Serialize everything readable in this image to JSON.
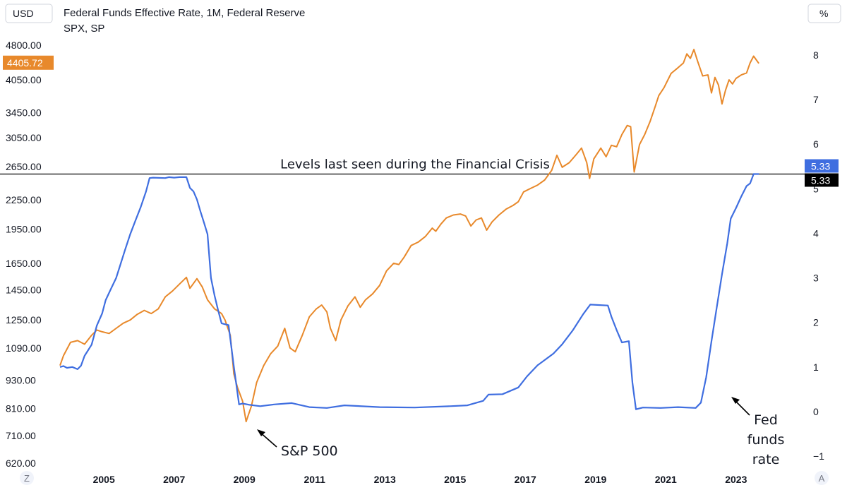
{
  "header": {
    "currency_label": "USD",
    "pct_label": "%",
    "series_title_1": "Federal Funds Effective Rate, 1M, Federal Reserve",
    "series_title_2": "SPX, SP",
    "zoom_label": "Z",
    "auto_label": "A"
  },
  "colors": {
    "spx": "#e8892b",
    "fed": "#3f6ee0",
    "ref_line": "#000000"
  },
  "chart_data": {
    "type": "line",
    "title": "Federal Funds Effective Rate, 1M, Federal Reserve vs SPX, SP",
    "x_ticks": [
      "2005",
      "2007",
      "2009",
      "2011",
      "2013",
      "2015",
      "2017",
      "2019",
      "2021",
      "2023"
    ],
    "xlim": [
      2003.8,
      2024.4
    ],
    "y_left": {
      "label": "USD",
      "scale": "log",
      "ticks": [
        "4800.00",
        "4050.00",
        "3450.00",
        "3050.00",
        "2650.00",
        "2250.00",
        "1950.00",
        "1650.00",
        "1450.00",
        "1250.00",
        "1090.00",
        "930.00",
        "810.00",
        "710.00",
        "620.00"
      ],
      "range": [
        620,
        4800
      ]
    },
    "y_right": {
      "label": "%",
      "ticks": [
        "8",
        "7",
        "6",
        "5",
        "4",
        "3",
        "2",
        "1",
        "0",
        "−1"
      ],
      "range": [
        -1,
        8
      ]
    },
    "series": [
      {
        "name": "SPX, SP",
        "axis": "left",
        "last_value_label": "4405.72",
        "points": [
          [
            2003.9,
            1000
          ],
          [
            2004.0,
            1050
          ],
          [
            2004.2,
            1120
          ],
          [
            2004.4,
            1130
          ],
          [
            2004.6,
            1110
          ],
          [
            2004.8,
            1160
          ],
          [
            2004.95,
            1190
          ],
          [
            2005.1,
            1180
          ],
          [
            2005.3,
            1170
          ],
          [
            2005.5,
            1200
          ],
          [
            2005.7,
            1230
          ],
          [
            2005.9,
            1250
          ],
          [
            2006.1,
            1285
          ],
          [
            2006.3,
            1310
          ],
          [
            2006.5,
            1290
          ],
          [
            2006.7,
            1320
          ],
          [
            2006.9,
            1400
          ],
          [
            2007.1,
            1440
          ],
          [
            2007.3,
            1490
          ],
          [
            2007.5,
            1540
          ],
          [
            2007.6,
            1460
          ],
          [
            2007.8,
            1530
          ],
          [
            2007.95,
            1470
          ],
          [
            2008.1,
            1380
          ],
          [
            2008.3,
            1320
          ],
          [
            2008.5,
            1290
          ],
          [
            2008.6,
            1250
          ],
          [
            2008.75,
            1160
          ],
          [
            2008.85,
            960
          ],
          [
            2008.95,
            900
          ],
          [
            2009.1,
            840
          ],
          [
            2009.2,
            760
          ],
          [
            2009.35,
            820
          ],
          [
            2009.5,
            920
          ],
          [
            2009.7,
            1000
          ],
          [
            2009.9,
            1060
          ],
          [
            2010.1,
            1100
          ],
          [
            2010.3,
            1200
          ],
          [
            2010.45,
            1090
          ],
          [
            2010.6,
            1070
          ],
          [
            2010.8,
            1160
          ],
          [
            2011.0,
            1270
          ],
          [
            2011.2,
            1320
          ],
          [
            2011.35,
            1345
          ],
          [
            2011.5,
            1300
          ],
          [
            2011.6,
            1200
          ],
          [
            2011.75,
            1130
          ],
          [
            2011.9,
            1250
          ],
          [
            2012.1,
            1340
          ],
          [
            2012.3,
            1400
          ],
          [
            2012.45,
            1330
          ],
          [
            2012.6,
            1380
          ],
          [
            2012.8,
            1420
          ],
          [
            2013.0,
            1480
          ],
          [
            2013.2,
            1590
          ],
          [
            2013.4,
            1650
          ],
          [
            2013.55,
            1640
          ],
          [
            2013.7,
            1700
          ],
          [
            2013.9,
            1800
          ],
          [
            2014.1,
            1830
          ],
          [
            2014.3,
            1880
          ],
          [
            2014.5,
            1960
          ],
          [
            2014.6,
            1930
          ],
          [
            2014.75,
            2000
          ],
          [
            2014.9,
            2060
          ],
          [
            2015.1,
            2090
          ],
          [
            2015.3,
            2100
          ],
          [
            2015.45,
            2080
          ],
          [
            2015.6,
            1980
          ],
          [
            2015.75,
            2040
          ],
          [
            2015.9,
            2060
          ],
          [
            2016.05,
            1940
          ],
          [
            2016.2,
            2020
          ],
          [
            2016.4,
            2090
          ],
          [
            2016.6,
            2150
          ],
          [
            2016.8,
            2190
          ],
          [
            2016.95,
            2230
          ],
          [
            2017.1,
            2340
          ],
          [
            2017.3,
            2380
          ],
          [
            2017.5,
            2420
          ],
          [
            2017.7,
            2480
          ],
          [
            2017.9,
            2600
          ],
          [
            2018.05,
            2800
          ],
          [
            2018.2,
            2640
          ],
          [
            2018.4,
            2700
          ],
          [
            2018.6,
            2810
          ],
          [
            2018.75,
            2900
          ],
          [
            2018.9,
            2700
          ],
          [
            2018.98,
            2500
          ],
          [
            2019.1,
            2750
          ],
          [
            2019.3,
            2900
          ],
          [
            2019.45,
            2780
          ],
          [
            2019.6,
            2940
          ],
          [
            2019.75,
            2920
          ],
          [
            2019.9,
            3100
          ],
          [
            2020.05,
            3240
          ],
          [
            2020.15,
            3220
          ],
          [
            2020.25,
            2580
          ],
          [
            2020.4,
            2950
          ],
          [
            2020.55,
            3100
          ],
          [
            2020.7,
            3300
          ],
          [
            2020.85,
            3560
          ],
          [
            2020.95,
            3750
          ],
          [
            2021.1,
            3900
          ],
          [
            2021.3,
            4180
          ],
          [
            2021.5,
            4300
          ],
          [
            2021.65,
            4400
          ],
          [
            2021.75,
            4600
          ],
          [
            2021.85,
            4500
          ],
          [
            2021.95,
            4700
          ],
          [
            2022.05,
            4450
          ],
          [
            2022.2,
            4130
          ],
          [
            2022.35,
            4150
          ],
          [
            2022.45,
            3800
          ],
          [
            2022.55,
            4100
          ],
          [
            2022.65,
            3950
          ],
          [
            2022.75,
            3600
          ],
          [
            2022.85,
            3850
          ],
          [
            2022.95,
            4050
          ],
          [
            2023.05,
            3970
          ],
          [
            2023.15,
            4080
          ],
          [
            2023.3,
            4150
          ],
          [
            2023.45,
            4190
          ],
          [
            2023.55,
            4400
          ],
          [
            2023.65,
            4550
          ],
          [
            2023.8,
            4390
          ]
        ]
      },
      {
        "name": "Federal Funds Effective Rate",
        "axis": "right",
        "last_value_label": "5.33",
        "points": [
          [
            2003.9,
            1.0
          ],
          [
            2004.0,
            1.02
          ],
          [
            2004.1,
            0.98
          ],
          [
            2004.25,
            1.0
          ],
          [
            2004.4,
            0.95
          ],
          [
            2004.5,
            1.03
          ],
          [
            2004.6,
            1.25
          ],
          [
            2004.8,
            1.5
          ],
          [
            2004.95,
            1.93
          ],
          [
            2005.1,
            2.2
          ],
          [
            2005.2,
            2.5
          ],
          [
            2005.35,
            2.75
          ],
          [
            2005.5,
            3.0
          ],
          [
            2005.6,
            3.25
          ],
          [
            2005.75,
            3.62
          ],
          [
            2005.9,
            3.98
          ],
          [
            2006.05,
            4.29
          ],
          [
            2006.2,
            4.59
          ],
          [
            2006.35,
            4.94
          ],
          [
            2006.45,
            5.24
          ],
          [
            2006.55,
            5.25
          ],
          [
            2006.9,
            5.24
          ],
          [
            2007.0,
            5.26
          ],
          [
            2007.15,
            5.25
          ],
          [
            2007.3,
            5.26
          ],
          [
            2007.5,
            5.26
          ],
          [
            2007.6,
            5.02
          ],
          [
            2007.7,
            4.94
          ],
          [
            2007.8,
            4.76
          ],
          [
            2007.9,
            4.49
          ],
          [
            2008.0,
            4.24
          ],
          [
            2008.1,
            3.98
          ],
          [
            2008.2,
            3.0
          ],
          [
            2008.3,
            2.61
          ],
          [
            2008.4,
            2.28
          ],
          [
            2008.5,
            1.98
          ],
          [
            2008.7,
            1.94
          ],
          [
            2008.85,
            1.01
          ],
          [
            2009.0,
            0.16
          ],
          [
            2009.1,
            0.18
          ],
          [
            2009.3,
            0.15
          ],
          [
            2009.6,
            0.12
          ],
          [
            2010.0,
            0.16
          ],
          [
            2010.5,
            0.19
          ],
          [
            2011.0,
            0.1
          ],
          [
            2011.5,
            0.08
          ],
          [
            2012.0,
            0.14
          ],
          [
            2013.0,
            0.1
          ],
          [
            2014.0,
            0.09
          ],
          [
            2015.0,
            0.12
          ],
          [
            2015.5,
            0.14
          ],
          [
            2015.95,
            0.24
          ],
          [
            2016.1,
            0.38
          ],
          [
            2016.5,
            0.39
          ],
          [
            2016.95,
            0.54
          ],
          [
            2017.2,
            0.79
          ],
          [
            2017.5,
            1.04
          ],
          [
            2017.95,
            1.3
          ],
          [
            2018.2,
            1.51
          ],
          [
            2018.5,
            1.82
          ],
          [
            2018.8,
            2.19
          ],
          [
            2019.0,
            2.4
          ],
          [
            2019.5,
            2.38
          ],
          [
            2019.6,
            2.13
          ],
          [
            2019.75,
            1.83
          ],
          [
            2019.9,
            1.55
          ],
          [
            2020.1,
            1.58
          ],
          [
            2020.2,
            0.65
          ],
          [
            2020.3,
            0.05
          ],
          [
            2020.5,
            0.09
          ],
          [
            2021.0,
            0.08
          ],
          [
            2021.5,
            0.1
          ],
          [
            2022.0,
            0.08
          ],
          [
            2022.15,
            0.2
          ],
          [
            2022.3,
            0.77
          ],
          [
            2022.45,
            1.58
          ],
          [
            2022.6,
            2.33
          ],
          [
            2022.75,
            3.08
          ],
          [
            2022.9,
            3.78
          ],
          [
            2023.0,
            4.33
          ],
          [
            2023.15,
            4.57
          ],
          [
            2023.3,
            4.83
          ],
          [
            2023.45,
            5.06
          ],
          [
            2023.55,
            5.12
          ],
          [
            2023.65,
            5.33
          ],
          [
            2023.8,
            5.33
          ]
        ]
      }
    ],
    "reference_line": {
      "value": 5.33,
      "axis": "right",
      "label": "5.33"
    },
    "annotations": {
      "ref_text": "Levels last seen during the Financial Crisis",
      "spx_callout": "S&P 500",
      "fed_callout_1": "Fed",
      "fed_callout_2": "funds",
      "fed_callout_3": "rate"
    }
  }
}
